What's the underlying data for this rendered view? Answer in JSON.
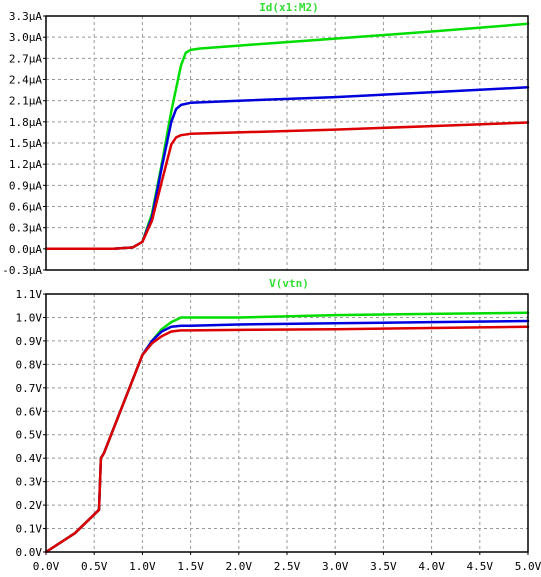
{
  "chart_data": [
    {
      "type": "line",
      "title": "Id(x1:M2)",
      "x_range": [
        0,
        5
      ],
      "ylim": [
        -0.3,
        3.3
      ],
      "y_ticks": [
        "-0.3µA",
        "0.0µA",
        "0.3µA",
        "0.6µA",
        "0.9µA",
        "1.2µA",
        "1.5µA",
        "1.8µA",
        "2.1µA",
        "2.4µA",
        "2.7µA",
        "3.0µA",
        "3.3µA"
      ],
      "grid": true,
      "series": [
        {
          "color": "#00dd00",
          "x": [
            0,
            0.7,
            0.9,
            1.0,
            1.1,
            1.2,
            1.3,
            1.4,
            1.45,
            1.5,
            1.6,
            2.0,
            3.0,
            4.0,
            5.0
          ],
          "y": [
            0,
            0,
            0.02,
            0.1,
            0.5,
            1.2,
            1.95,
            2.6,
            2.78,
            2.82,
            2.84,
            2.88,
            2.98,
            3.08,
            3.19
          ]
        },
        {
          "color": "#0000dd",
          "x": [
            0,
            0.7,
            0.9,
            1.0,
            1.1,
            1.2,
            1.3,
            1.35,
            1.4,
            1.5,
            2.0,
            3.0,
            4.0,
            5.0
          ],
          "y": [
            0,
            0,
            0.02,
            0.1,
            0.45,
            1.15,
            1.8,
            1.98,
            2.04,
            2.07,
            2.1,
            2.15,
            2.22,
            2.29
          ]
        },
        {
          "color": "#dd0000",
          "x": [
            0,
            0.7,
            0.9,
            1.0,
            1.1,
            1.2,
            1.3,
            1.35,
            1.4,
            1.5,
            2.0,
            3.0,
            4.0,
            5.0
          ],
          "y": [
            0,
            0,
            0.02,
            0.1,
            0.4,
            0.95,
            1.48,
            1.58,
            1.61,
            1.63,
            1.65,
            1.69,
            1.74,
            1.79
          ]
        }
      ]
    },
    {
      "type": "line",
      "title": "V(vtn)",
      "x_range": [
        0,
        5
      ],
      "ylim": [
        0,
        1.1
      ],
      "x_ticks": [
        "0.0V",
        "0.5V",
        "1.0V",
        "1.5V",
        "2.0V",
        "2.5V",
        "3.0V",
        "3.5V",
        "4.0V",
        "4.5V",
        "5.0V"
      ],
      "y_ticks": [
        "0.0V",
        "0.1V",
        "0.2V",
        "0.3V",
        "0.4V",
        "0.5V",
        "0.6V",
        "0.7V",
        "0.8V",
        "0.9V",
        "1.0V",
        "1.1V"
      ],
      "grid": true,
      "series": [
        {
          "color": "#00dd00",
          "x": [
            0,
            0.3,
            0.55,
            0.57,
            0.6,
            0.8,
            1.0,
            1.1,
            1.2,
            1.3,
            1.4,
            1.5,
            2.0,
            3.0,
            4.0,
            5.0
          ],
          "y": [
            0,
            0.08,
            0.18,
            0.4,
            0.42,
            0.63,
            0.84,
            0.9,
            0.95,
            0.98,
            1.0,
            1.0,
            1.0,
            1.01,
            1.015,
            1.02
          ]
        },
        {
          "color": "#0000dd",
          "x": [
            0,
            0.3,
            0.55,
            0.57,
            0.6,
            0.8,
            1.0,
            1.1,
            1.2,
            1.3,
            1.4,
            1.5,
            2.0,
            3.0,
            4.0,
            5.0
          ],
          "y": [
            0,
            0.08,
            0.18,
            0.4,
            0.42,
            0.63,
            0.84,
            0.9,
            0.94,
            0.96,
            0.965,
            0.965,
            0.97,
            0.975,
            0.98,
            0.985
          ]
        },
        {
          "color": "#dd0000",
          "x": [
            0,
            0.3,
            0.55,
            0.57,
            0.6,
            0.8,
            1.0,
            1.1,
            1.2,
            1.3,
            1.4,
            1.5,
            2.0,
            3.0,
            4.0,
            5.0
          ],
          "y": [
            0,
            0.08,
            0.18,
            0.4,
            0.42,
            0.63,
            0.84,
            0.89,
            0.92,
            0.94,
            0.945,
            0.945,
            0.947,
            0.95,
            0.955,
            0.96
          ]
        }
      ]
    }
  ]
}
